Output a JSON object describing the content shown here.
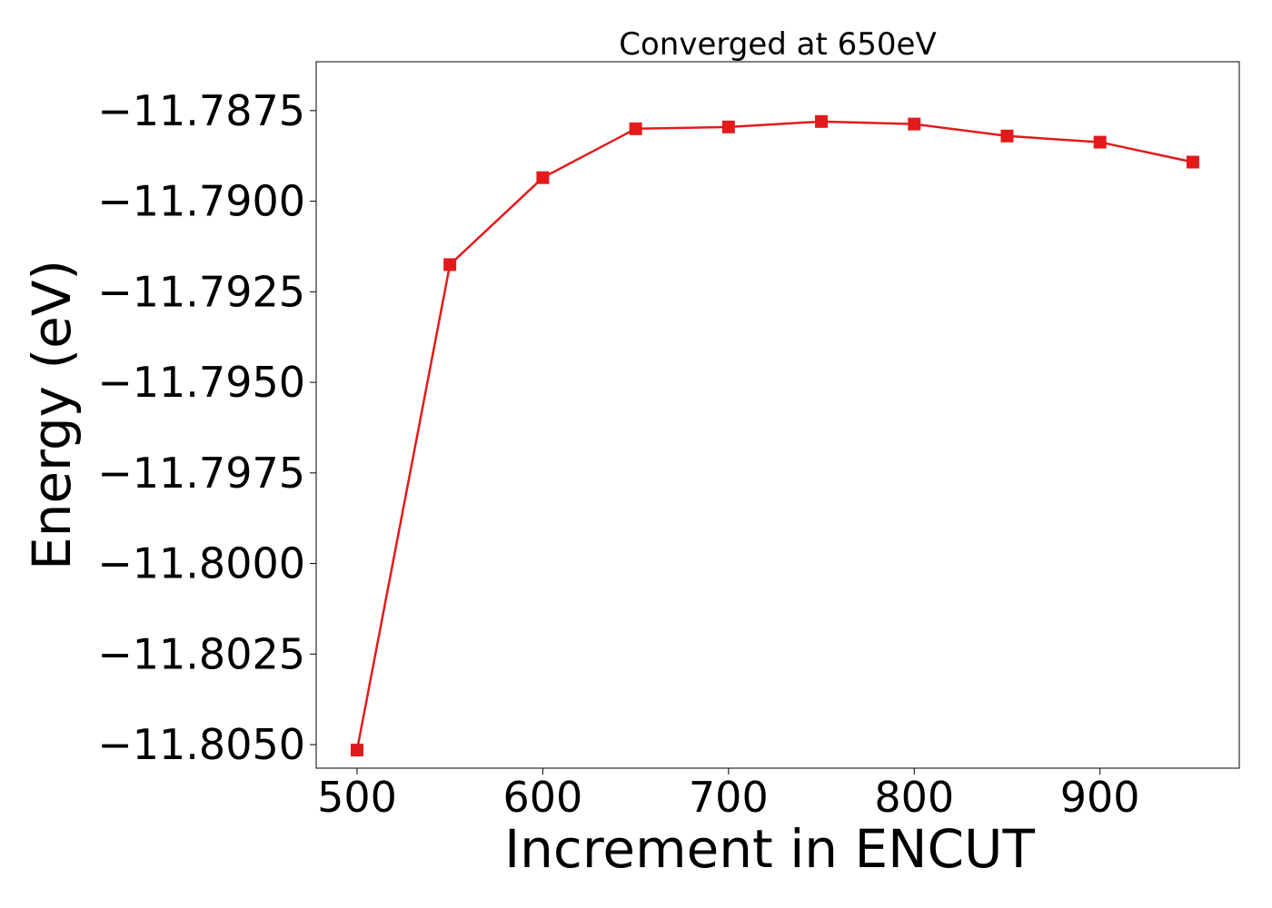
{
  "chart_data": {
    "type": "line",
    "title": "Converged at 650eV",
    "xlabel": "Increment in ENCUT",
    "ylabel": "Energy (eV)",
    "x": [
      500,
      550,
      600,
      650,
      700,
      750,
      800,
      850,
      900,
      950
    ],
    "series": [
      {
        "values": [
          -11.80515,
          -11.79175,
          -11.78935,
          -11.788,
          -11.78795,
          -11.7878,
          -11.78787,
          -11.7882,
          -11.78837,
          -11.78892
        ],
        "color": "#e31a1c",
        "marker": "square"
      }
    ],
    "xlim": [
      478,
      975
    ],
    "ylim": [
      -11.80565,
      -11.78615
    ],
    "xticks": [
      500,
      600,
      700,
      800,
      900
    ],
    "xtick_labels": [
      "500",
      "600",
      "700",
      "800",
      "900"
    ],
    "yticks": [
      -11.7875,
      -11.79,
      -11.7925,
      -11.795,
      -11.7975,
      -11.8,
      -11.8025,
      -11.805
    ],
    "ytick_labels": [
      "−11.7875",
      "−11.7900",
      "−11.7925",
      "−11.7950",
      "−11.7975",
      "−11.8000",
      "−11.8025",
      "−11.8050"
    ],
    "grid": false,
    "legend": false
  }
}
